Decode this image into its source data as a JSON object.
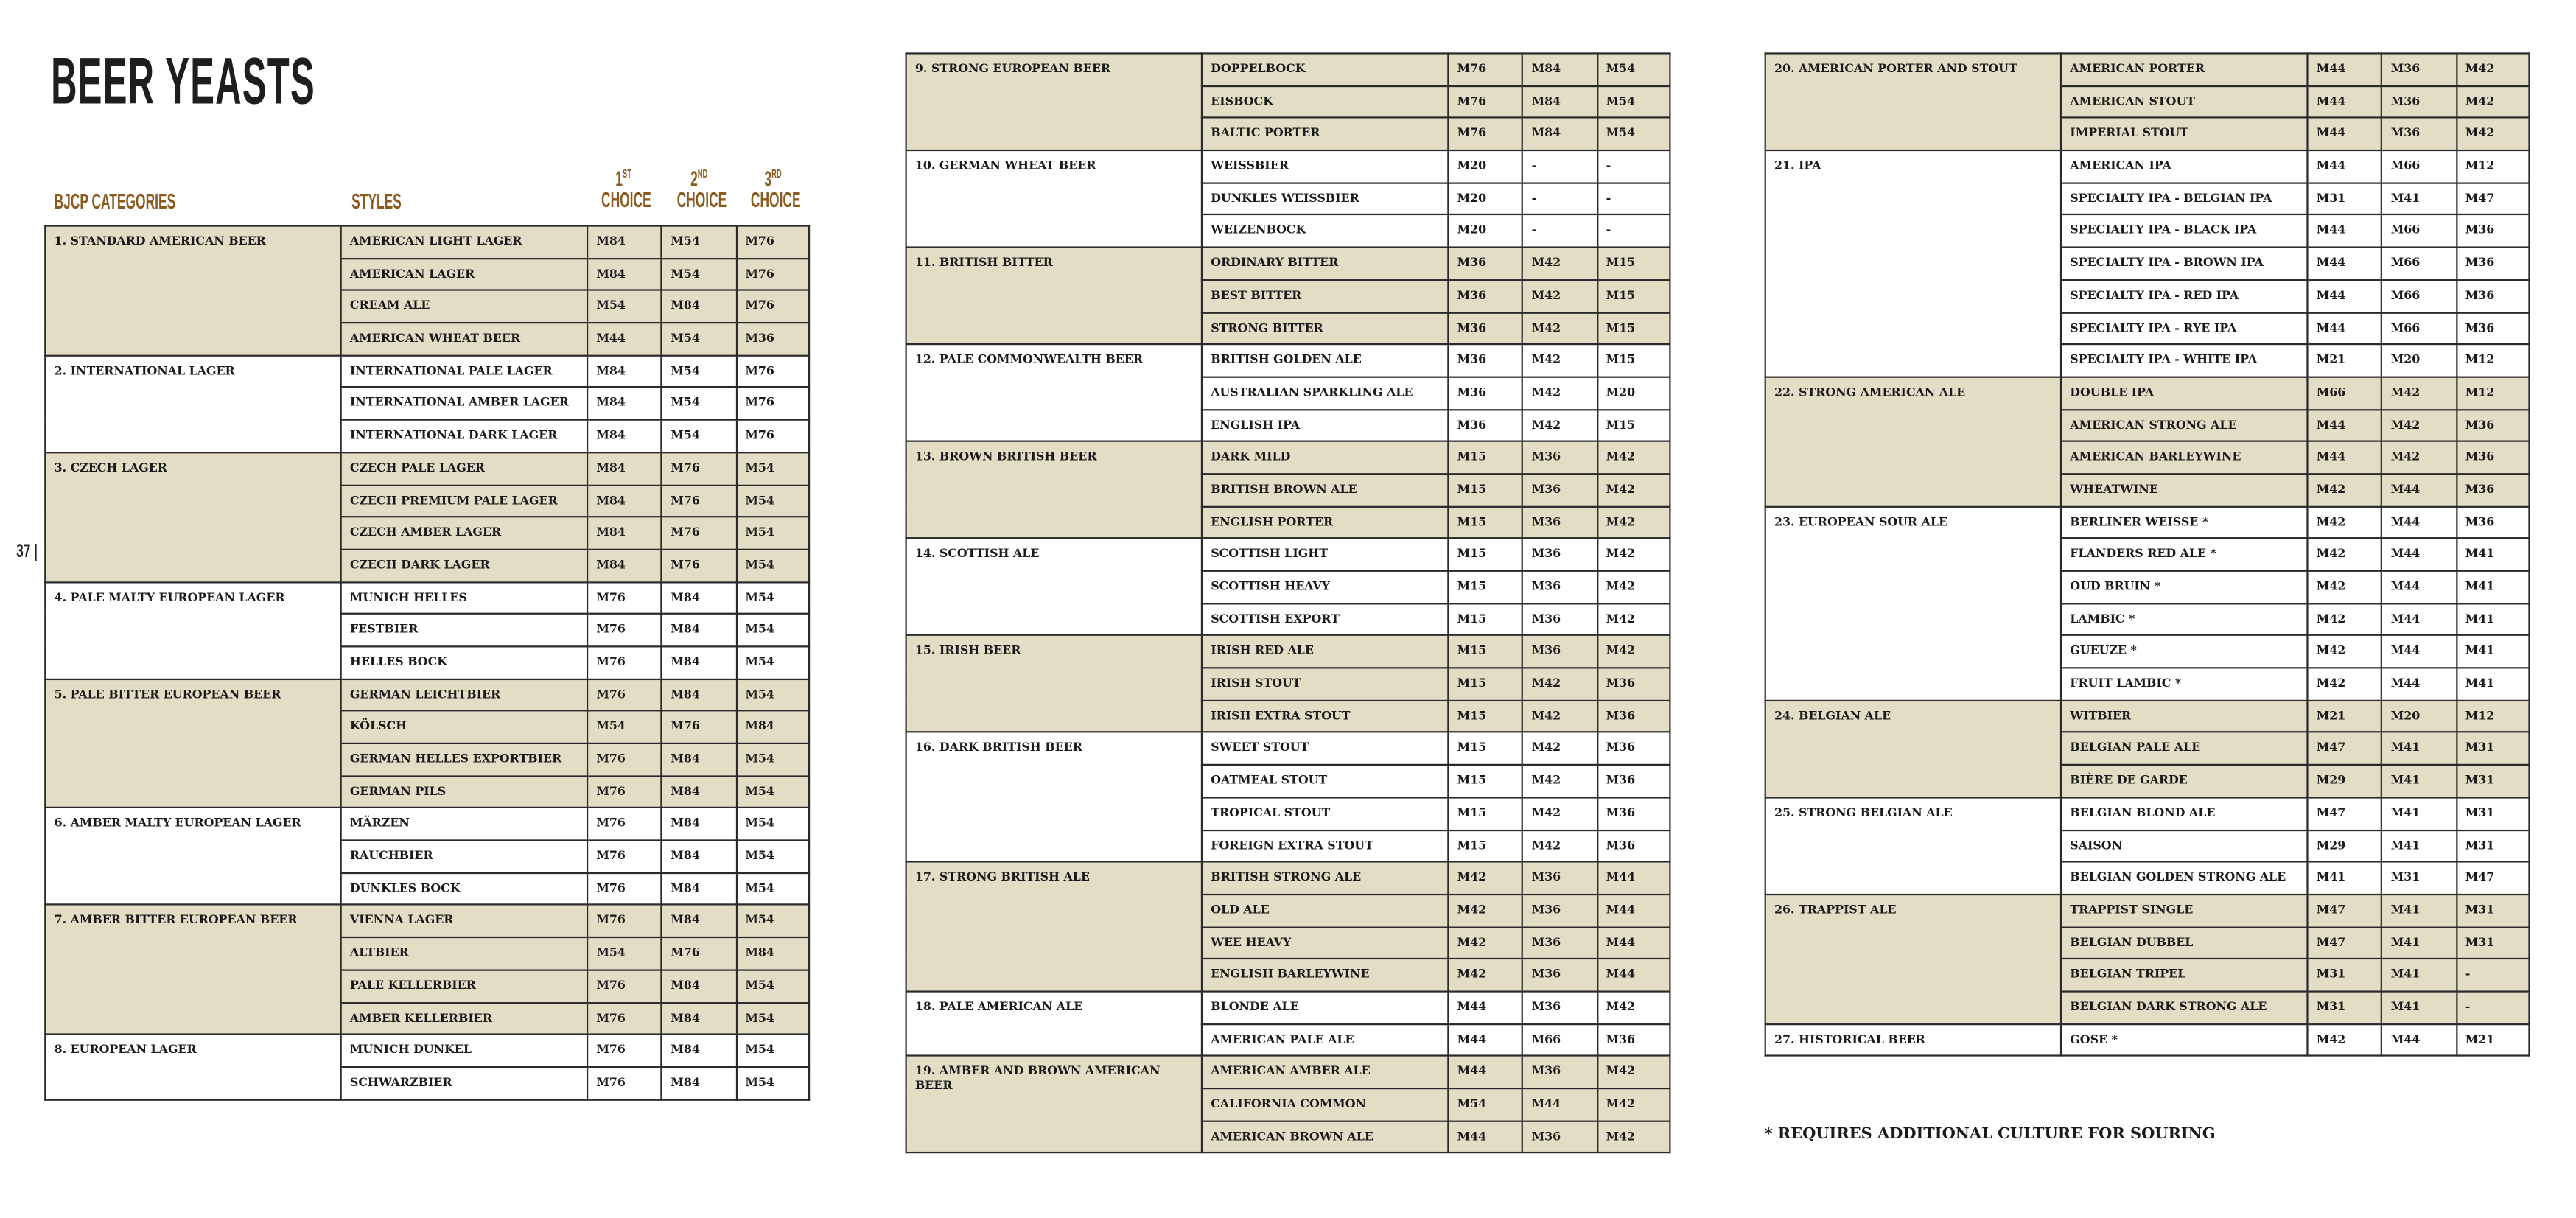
{
  "title": "BEER YEASTS",
  "page_number": "37 |",
  "headers": {
    "categories": "BJCP CATEGORIES",
    "styles": "STYLES",
    "choices": [
      {
        "num": "1",
        "suffix": "ST",
        "label": "CHOICE"
      },
      {
        "num": "2",
        "suffix": "ND",
        "label": "CHOICE"
      },
      {
        "num": "3",
        "suffix": "RD",
        "label": "CHOICE"
      }
    ]
  },
  "colors": {
    "header_brown": "#8a5a1e",
    "shaded_row": "#e4ddc6",
    "border": "#2a2a2a"
  },
  "tables": [
    {
      "categories": [
        {
          "name": "1. STANDARD AMERICAN BEER",
          "styles": [
            [
              "AMERICAN LIGHT LAGER",
              "M84",
              "M54",
              "M76"
            ],
            [
              "AMERICAN LAGER",
              "M84",
              "M54",
              "M76"
            ],
            [
              "CREAM ALE",
              "M54",
              "M84",
              "M76"
            ],
            [
              "AMERICAN WHEAT BEER",
              "M44",
              "M54",
              "M36"
            ]
          ]
        },
        {
          "name": "2. INTERNATIONAL LAGER",
          "styles": [
            [
              "INTERNATIONAL PALE LAGER",
              "M84",
              "M54",
              "M76"
            ],
            [
              "INTERNATIONAL AMBER LAGER",
              "M84",
              "M54",
              "M76"
            ],
            [
              "INTERNATIONAL DARK LAGER",
              "M84",
              "M54",
              "M76"
            ]
          ]
        },
        {
          "name": "3. CZECH LAGER",
          "styles": [
            [
              "CZECH PALE LAGER",
              "M84",
              "M76",
              "M54"
            ],
            [
              "CZECH PREMIUM PALE LAGER",
              "M84",
              "M76",
              "M54"
            ],
            [
              "CZECH AMBER LAGER",
              "M84",
              "M76",
              "M54"
            ],
            [
              "CZECH DARK LAGER",
              "M84",
              "M76",
              "M54"
            ]
          ]
        },
        {
          "name": "4. PALE MALTY EUROPEAN LAGER",
          "styles": [
            [
              "MUNICH HELLES",
              "M76",
              "M84",
              "M54"
            ],
            [
              "FESTBIER",
              "M76",
              "M84",
              "M54"
            ],
            [
              "HELLES BOCK",
              "M76",
              "M84",
              "M54"
            ]
          ]
        },
        {
          "name": "5. PALE BITTER EUROPEAN BEER",
          "styles": [
            [
              "GERMAN LEICHTBIER",
              "M76",
              "M84",
              "M54"
            ],
            [
              "KÖLSCH",
              "M54",
              "M76",
              "M84"
            ],
            [
              "GERMAN HELLES EXPORTBIER",
              "M76",
              "M84",
              "M54"
            ],
            [
              "GERMAN PILS",
              "M76",
              "M84",
              "M54"
            ]
          ]
        },
        {
          "name": "6. AMBER MALTY EUROPEAN LAGER",
          "styles": [
            [
              "MÄRZEN",
              "M76",
              "M84",
              "M54"
            ],
            [
              "RAUCHBIER",
              "M76",
              "M84",
              "M54"
            ],
            [
              "DUNKLES BOCK",
              "M76",
              "M84",
              "M54"
            ]
          ]
        },
        {
          "name": "7. AMBER BITTER EUROPEAN BEER",
          "styles": [
            [
              "VIENNA LAGER",
              "M76",
              "M84",
              "M54"
            ],
            [
              "ALTBIER",
              "M54",
              "M76",
              "M84"
            ],
            [
              "PALE KELLERBIER",
              "M76",
              "M84",
              "M54"
            ],
            [
              "AMBER KELLERBIER",
              "M76",
              "M84",
              "M54"
            ]
          ]
        },
        {
          "name": "8. EUROPEAN LAGER",
          "styles": [
            [
              "MUNICH DUNKEL",
              "M76",
              "M84",
              "M54"
            ],
            [
              "SCHWARZBIER",
              "M76",
              "M84",
              "M54"
            ]
          ]
        }
      ]
    },
    {
      "categories": [
        {
          "name": "9. STRONG EUROPEAN BEER",
          "styles": [
            [
              "DOPPELBOCK",
              "M76",
              "M84",
              "M54"
            ],
            [
              "EISBOCK",
              "M76",
              "M84",
              "M54"
            ],
            [
              "BALTIC PORTER",
              "M76",
              "M84",
              "M54"
            ]
          ]
        },
        {
          "name": "10. GERMAN WHEAT BEER",
          "styles": [
            [
              "WEISSBIER",
              "M20",
              "-",
              "-"
            ],
            [
              "DUNKLES WEISSBIER",
              "M20",
              "-",
              "-"
            ],
            [
              "WEIZENBOCK",
              "M20",
              "-",
              "-"
            ]
          ]
        },
        {
          "name": "11. BRITISH BITTER",
          "styles": [
            [
              "ORDINARY BITTER",
              "M36",
              "M42",
              "M15"
            ],
            [
              "BEST BITTER",
              "M36",
              "M42",
              "M15"
            ],
            [
              "STRONG BITTER",
              "M36",
              "M42",
              "M15"
            ]
          ]
        },
        {
          "name": "12. PALE COMMONWEALTH BEER",
          "styles": [
            [
              "BRITISH GOLDEN ALE",
              "M36",
              "M42",
              "M15"
            ],
            [
              "AUSTRALIAN SPARKLING ALE",
              "M36",
              "M42",
              "M20"
            ],
            [
              "ENGLISH IPA",
              "M36",
              "M42",
              "M15"
            ]
          ]
        },
        {
          "name": "13. BROWN BRITISH BEER",
          "styles": [
            [
              "DARK MILD",
              "M15",
              "M36",
              "M42"
            ],
            [
              "BRITISH BROWN ALE",
              "M15",
              "M36",
              "M42"
            ],
            [
              "ENGLISH PORTER",
              "M15",
              "M36",
              "M42"
            ]
          ]
        },
        {
          "name": "14. SCOTTISH ALE",
          "styles": [
            [
              "SCOTTISH LIGHT",
              "M15",
              "M36",
              "M42"
            ],
            [
              "SCOTTISH HEAVY",
              "M15",
              "M36",
              "M42"
            ],
            [
              "SCOTTISH EXPORT",
              "M15",
              "M36",
              "M42"
            ]
          ]
        },
        {
          "name": "15. IRISH BEER",
          "styles": [
            [
              "IRISH RED ALE",
              "M15",
              "M36",
              "M42"
            ],
            [
              "IRISH STOUT",
              "M15",
              "M42",
              "M36"
            ],
            [
              "IRISH EXTRA STOUT",
              "M15",
              "M42",
              "M36"
            ]
          ]
        },
        {
          "name": "16. DARK BRITISH BEER",
          "styles": [
            [
              "SWEET STOUT",
              "M15",
              "M42",
              "M36"
            ],
            [
              "OATMEAL STOUT",
              "M15",
              "M42",
              "M36"
            ],
            [
              "TROPICAL STOUT",
              "M15",
              "M42",
              "M36"
            ],
            [
              "FOREIGN EXTRA STOUT",
              "M15",
              "M42",
              "M36"
            ]
          ]
        },
        {
          "name": "17. STRONG BRITISH ALE",
          "styles": [
            [
              "BRITISH STRONG ALE",
              "M42",
              "M36",
              "M44"
            ],
            [
              "OLD ALE",
              "M42",
              "M36",
              "M44"
            ],
            [
              "WEE HEAVY",
              "M42",
              "M36",
              "M44"
            ],
            [
              "ENGLISH BARLEYWINE",
              "M42",
              "M36",
              "M44"
            ]
          ]
        },
        {
          "name": "18. PALE AMERICAN ALE",
          "styles": [
            [
              "BLONDE ALE",
              "M44",
              "M36",
              "M42"
            ],
            [
              "AMERICAN PALE ALE",
              "M44",
              "M66",
              "M36"
            ]
          ]
        },
        {
          "name": "19. AMBER AND BROWN AMERICAN BEER",
          "styles": [
            [
              "AMERICAN AMBER ALE",
              "M44",
              "M36",
              "M42"
            ],
            [
              "CALIFORNIA COMMON",
              "M54",
              "M44",
              "M42"
            ],
            [
              "AMERICAN BROWN ALE",
              "M44",
              "M36",
              "M42"
            ]
          ]
        }
      ]
    },
    {
      "categories": [
        {
          "name": "20. AMERICAN PORTER AND STOUT",
          "styles": [
            [
              "AMERICAN PORTER",
              "M44",
              "M36",
              "M42"
            ],
            [
              "AMERICAN STOUT",
              "M44",
              "M36",
              "M42"
            ],
            [
              "IMPERIAL STOUT",
              "M44",
              "M36",
              "M42"
            ]
          ]
        },
        {
          "name": "21. IPA",
          "styles": [
            [
              "AMERICAN IPA",
              "M44",
              "M66",
              "M12"
            ],
            [
              "SPECIALTY IPA - BELGIAN IPA",
              "M31",
              "M41",
              "M47"
            ],
            [
              "SPECIALTY IPA - BLACK IPA",
              "M44",
              "M66",
              "M36"
            ],
            [
              "SPECIALTY IPA - BROWN IPA",
              "M44",
              "M66",
              "M36"
            ],
            [
              "SPECIALTY IPA - RED IPA",
              "M44",
              "M66",
              "M36"
            ],
            [
              "SPECIALTY IPA - RYE IPA",
              "M44",
              "M66",
              "M36"
            ],
            [
              "SPECIALTY IPA - WHITE IPA",
              "M21",
              "M20",
              "M12"
            ]
          ]
        },
        {
          "name": "22. STRONG AMERICAN ALE",
          "styles": [
            [
              "DOUBLE IPA",
              "M66",
              "M42",
              "M12"
            ],
            [
              "AMERICAN STRONG ALE",
              "M44",
              "M42",
              "M36"
            ],
            [
              "AMERICAN BARLEYWINE",
              "M44",
              "M42",
              "M36"
            ],
            [
              "WHEATWINE",
              "M42",
              "M44",
              "M36"
            ]
          ]
        },
        {
          "name": "23. EUROPEAN SOUR ALE",
          "styles": [
            [
              "BERLINER WEISSE *",
              "M42",
              "M44",
              "M36"
            ],
            [
              "FLANDERS RED ALE *",
              "M42",
              "M44",
              "M41"
            ],
            [
              "OUD BRUIN *",
              "M42",
              "M44",
              "M41"
            ],
            [
              "LAMBIC *",
              "M42",
              "M44",
              "M41"
            ],
            [
              "GUEUZE *",
              "M42",
              "M44",
              "M41"
            ],
            [
              "FRUIT LAMBIC *",
              "M42",
              "M44",
              "M41"
            ]
          ]
        },
        {
          "name": "24. BELGIAN ALE",
          "styles": [
            [
              "WITBIER",
              "M21",
              "M20",
              "M12"
            ],
            [
              "BELGIAN PALE ALE",
              "M47",
              "M41",
              "M31"
            ],
            [
              "BIÈRE DE GARDE",
              "M29",
              "M41",
              "M31"
            ]
          ]
        },
        {
          "name": "25. STRONG BELGIAN ALE",
          "styles": [
            [
              "BELGIAN BLOND ALE",
              "M47",
              "M41",
              "M31"
            ],
            [
              "SAISON",
              "M29",
              "M41",
              "M31"
            ],
            [
              "BELGIAN GOLDEN STRONG ALE",
              "M41",
              "M31",
              "M47"
            ]
          ]
        },
        {
          "name": "26. TRAPPIST ALE",
          "styles": [
            [
              "TRAPPIST SINGLE",
              "M47",
              "M41",
              "M31"
            ],
            [
              "BELGIAN DUBBEL",
              "M47",
              "M41",
              "M31"
            ],
            [
              "BELGIAN TRIPEL",
              "M31",
              "M41",
              "-"
            ],
            [
              "BELGIAN DARK STRONG ALE",
              "M31",
              "M41",
              "-"
            ]
          ]
        },
        {
          "name": "27. HISTORICAL BEER",
          "styles": [
            [
              "GOSE *",
              "M42",
              "M44",
              "M21"
            ]
          ]
        }
      ]
    }
  ],
  "footnote": "* REQUIRES ADDITIONAL CULTURE FOR SOURING"
}
